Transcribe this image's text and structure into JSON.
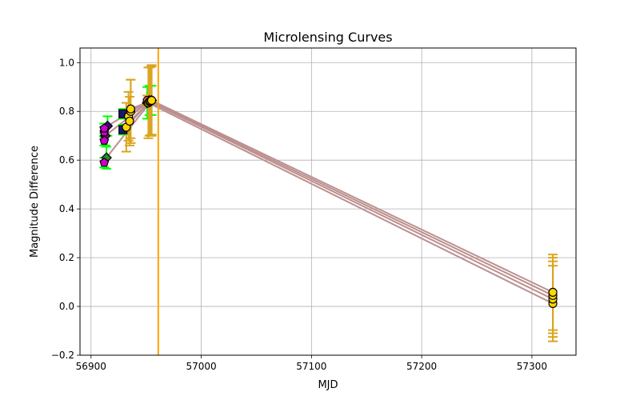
{
  "chart_data": {
    "type": "scatter",
    "title": "Microlensing Curves",
    "xlabel": "MJD",
    "ylabel": "Magnitude Difference",
    "xlim": [
      56890,
      57340
    ],
    "ylim": [
      -0.2,
      1.06
    ],
    "xticks": [
      56900,
      57000,
      57100,
      57200,
      57300
    ],
    "xtick_labels": [
      "56900",
      "57000",
      "57100",
      "57200",
      "57300"
    ],
    "yticks": [
      -0.2,
      0.0,
      0.2,
      0.4,
      0.6,
      0.8,
      1.0
    ],
    "ytick_labels": [
      "−0.2",
      "0.0",
      "0.2",
      "0.4",
      "0.6",
      "0.8",
      "1.0"
    ],
    "grid": true,
    "vertical_line": {
      "x": 56961,
      "color": "#ffa500"
    },
    "line_color": "#bc8f8f",
    "series": [
      {
        "marker": "diamond",
        "marker_color": "#228b22",
        "err_color": "#00ff00",
        "x": [
          56914,
          56955
        ],
        "y": [
          0.61,
          0.845
        ],
        "err": [
          0.045,
          0.06
        ]
      },
      {
        "marker": "diamond",
        "marker_color": "#8b008b",
        "err_color": "#00ff00",
        "x": [
          56913,
          56951
        ],
        "y": [
          0.7,
          0.835
        ],
        "err": [
          0.04,
          0.065
        ]
      },
      {
        "marker": "diamond",
        "marker_color": "#4b0082",
        "err_color": "#00ff00",
        "x": [
          56915,
          56953
        ],
        "y": [
          0.74,
          0.845
        ],
        "err": [
          0.04,
          0.06
        ]
      },
      {
        "marker": "pentagon",
        "marker_color": "#cc00cc",
        "err_color": "#00ff00",
        "x": [
          56912
        ],
        "y": [
          0.59
        ],
        "err": [
          0.02
        ]
      },
      {
        "marker": "pentagon",
        "marker_color": "#cc00cc",
        "err_color": "#00ff00",
        "x": [
          56912
        ],
        "y": [
          0.68
        ],
        "err": [
          0.02
        ]
      },
      {
        "marker": "pentagon",
        "marker_color": "#cc00cc",
        "err_color": "#00ff00",
        "x": [
          56912
        ],
        "y": [
          0.715
        ],
        "err": [
          0.02
        ]
      },
      {
        "marker": "pentagon",
        "marker_color": "#cc00cc",
        "err_color": "#00ff00",
        "x": [
          56912
        ],
        "y": [
          0.73
        ],
        "err": [
          0.02
        ]
      },
      {
        "marker": "square",
        "marker_color": "#191970",
        "err_color": "#00ff00",
        "x": [
          56929
        ],
        "y": [
          0.725
        ],
        "err": [
          0.02
        ]
      },
      {
        "marker": "square",
        "marker_color": "#191970",
        "err_color": "#00ff00",
        "x": [
          56929
        ],
        "y": [
          0.79
        ],
        "err": [
          0.02
        ]
      },
      {
        "marker": "circle",
        "marker_color": "#ff6347",
        "err_color": "#daa520",
        "x": [
          56951
        ],
        "y": [
          0.845
        ],
        "err": [
          0.02
        ]
      },
      {
        "marker": "circle",
        "marker_color": "#ffd700",
        "err_color": "#daa520",
        "x": [
          56932,
          56952,
          57319
        ],
        "y": [
          0.735,
          0.835,
          0.012
        ],
        "err": [
          0.1,
          0.145,
          0.155
        ]
      },
      {
        "marker": "circle",
        "marker_color": "#ffd700",
        "err_color": "#daa520",
        "x": [
          56934,
          56953,
          57319
        ],
        "y": [
          0.78,
          0.84,
          0.03
        ],
        "err": [
          0.1,
          0.14,
          0.155
        ]
      },
      {
        "marker": "circle",
        "marker_color": "#ffd700",
        "err_color": "#daa520",
        "x": [
          56935,
          56954,
          57319
        ],
        "y": [
          0.76,
          0.842,
          0.045
        ],
        "err": [
          0.1,
          0.14,
          0.155
        ]
      },
      {
        "marker": "circle",
        "marker_color": "#ffd700",
        "err_color": "#daa520",
        "x": [
          56936,
          56955,
          57319
        ],
        "y": [
          0.8,
          0.845,
          0.058
        ],
        "err": [
          0.13,
          0.145,
          0.155
        ]
      },
      {
        "marker": "circle",
        "marker_color": "#ffd700",
        "err_color": "#daa520",
        "x": [
          56936,
          56955
        ],
        "y": [
          0.81,
          0.845
        ],
        "err": [
          0.12,
          0.14
        ]
      }
    ]
  }
}
